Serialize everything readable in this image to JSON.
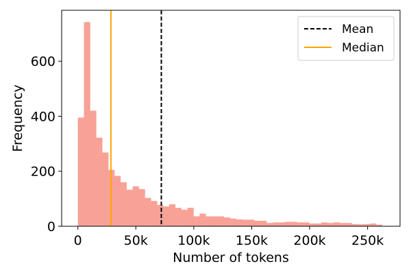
{
  "chart_data": {
    "type": "bar",
    "subtype": "histogram",
    "xlabel": "Number of tokens",
    "ylabel": "Frequency",
    "xlim": [
      -14000,
      278000
    ],
    "ylim": [
      0,
      785
    ],
    "xticks": [
      {
        "value": 0,
        "label": "0"
      },
      {
        "value": 50000,
        "label": "50k"
      },
      {
        "value": 100000,
        "label": "100k"
      },
      {
        "value": 150000,
        "label": "150k"
      },
      {
        "value": 200000,
        "label": "200k"
      },
      {
        "value": 250000,
        "label": "250k"
      }
    ],
    "yticks": [
      {
        "value": 0,
        "label": "0"
      },
      {
        "value": 200,
        "label": "200"
      },
      {
        "value": 400,
        "label": "400"
      },
      {
        "value": 600,
        "label": "600"
      }
    ],
    "bin_start": 0,
    "bin_width": 5250,
    "counts": [
      395,
      742,
      420,
      322,
      268,
      205,
      183,
      160,
      133,
      145,
      135,
      103,
      92,
      78,
      72,
      80,
      67,
      60,
      67,
      36,
      46,
      36,
      36,
      36,
      32,
      28,
      25,
      24,
      24,
      20,
      20,
      12,
      14,
      14,
      16,
      16,
      14,
      14,
      10,
      10,
      14,
      12,
      14,
      12,
      12,
      8,
      7,
      8,
      10,
      6
    ],
    "bar_color": "#F8A196",
    "mean": {
      "value": 72000,
      "label": "Mean",
      "color": "#000000",
      "style": "dashed"
    },
    "median": {
      "value": 28500,
      "label": "Median",
      "color": "#FFA500",
      "style": "solid"
    },
    "legend_position": "top-right",
    "grid": false
  }
}
